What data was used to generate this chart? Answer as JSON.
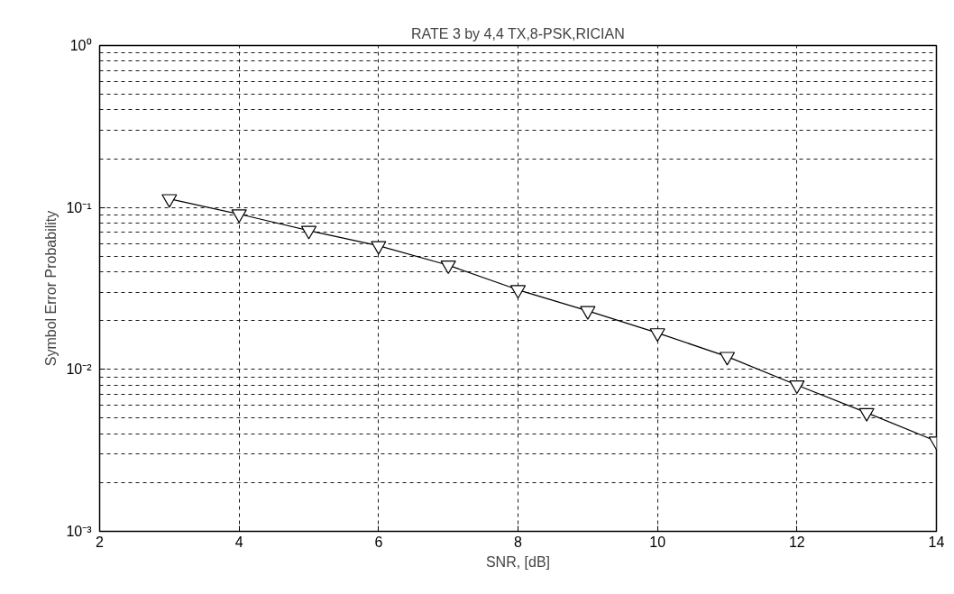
{
  "chart_data": {
    "type": "line",
    "title": "RATE 3 by 4,4 TX,8-PSK,RICIAN",
    "xlabel": "SNR, [dB]",
    "ylabel": "Symbol Error Probability",
    "x": [
      3,
      4,
      5,
      6,
      7,
      8,
      9,
      10,
      11,
      12,
      13,
      14
    ],
    "series": [
      {
        "color": "#000000",
        "values": [
          0.113,
          0.091,
          0.072,
          0.058,
          0.044,
          0.031,
          0.023,
          0.0168,
          0.012,
          0.008,
          0.0054,
          0.0036
        ]
      }
    ],
    "xlim": [
      2,
      14
    ],
    "xticks": [
      2,
      4,
      6,
      8,
      10,
      12,
      14
    ],
    "ylim": [
      0.001,
      1
    ],
    "yticks": [
      {
        "value": 0.001,
        "label": "10⁻³"
      },
      {
        "value": 0.01,
        "label": "10⁻²"
      },
      {
        "value": 0.1,
        "label": "10⁻¹"
      },
      {
        "value": 1,
        "label": "10⁰"
      }
    ],
    "log": "y",
    "grid": true,
    "marker": "triangle",
    "line_style": "solid"
  }
}
